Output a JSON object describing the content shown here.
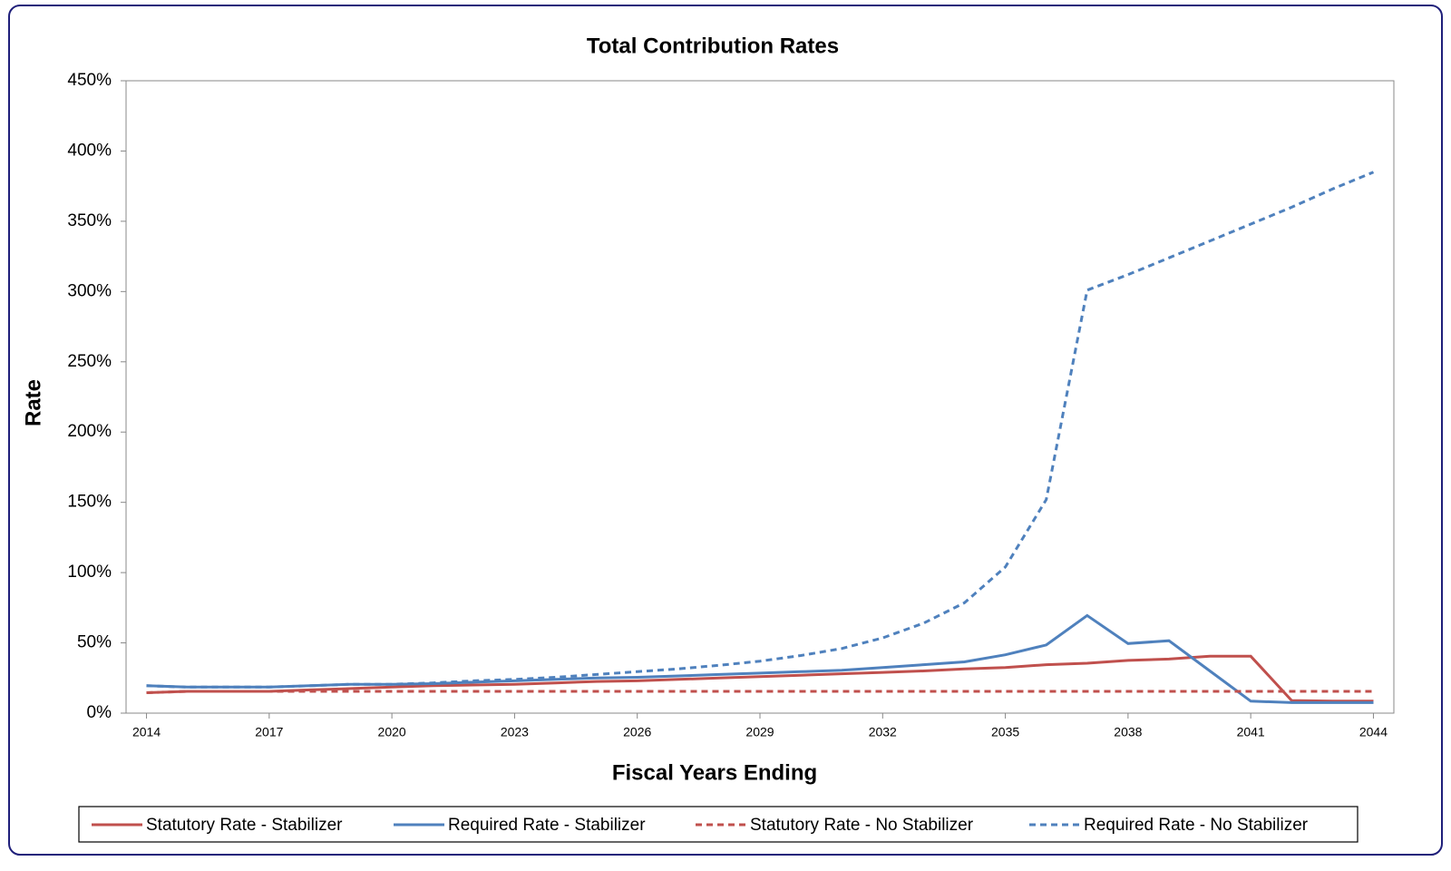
{
  "chart_data": {
    "type": "line",
    "title": "Total Contribution Rates",
    "x_label": "Fiscal Years Ending",
    "y_label": "Rate",
    "x": [
      2014,
      2015,
      2016,
      2017,
      2018,
      2019,
      2020,
      2021,
      2022,
      2023,
      2024,
      2025,
      2026,
      2027,
      2028,
      2029,
      2030,
      2031,
      2032,
      2033,
      2034,
      2035,
      2036,
      2037,
      2038,
      2039,
      2040,
      2041,
      2042,
      2043,
      2044
    ],
    "xlim": [
      2013.5,
      2044.5
    ],
    "xticks": [
      2014,
      2017,
      2020,
      2023,
      2026,
      2029,
      2032,
      2035,
      2038,
      2041,
      2044
    ],
    "ylim": [
      0,
      450
    ],
    "yticks": [
      {
        "value": 0,
        "label": "0%"
      },
      {
        "value": 50,
        "label": "50%"
      },
      {
        "value": 100,
        "label": "100%"
      },
      {
        "value": 150,
        "label": "150%"
      },
      {
        "value": 200,
        "label": "200%"
      },
      {
        "value": 250,
        "label": "250%"
      },
      {
        "value": 300,
        "label": "300%"
      },
      {
        "value": 350,
        "label": "350%"
      },
      {
        "value": 400,
        "label": "400%"
      },
      {
        "value": 450,
        "label": "450%"
      }
    ],
    "legend": "bottom",
    "series": [
      {
        "name": "Statutory Rate - Stabilizer",
        "color": "#c0504d",
        "line_style": "solid",
        "values": [
          14.5,
          15.5,
          15.5,
          15.5,
          16.5,
          17.5,
          18.5,
          19.5,
          20,
          20.5,
          21.5,
          22.5,
          23,
          24,
          25,
          26,
          27,
          28,
          29,
          30,
          31.5,
          32.5,
          34.5,
          35.5,
          37.5,
          38.5,
          40.5,
          40.5,
          9,
          8.5,
          8.5
        ]
      },
      {
        "name": "Required Rate - Stabilizer",
        "color": "#4f81bd",
        "line_style": "solid",
        "values": [
          19.5,
          18.5,
          18.5,
          18.5,
          19.5,
          20.5,
          20.5,
          21,
          22,
          23,
          24,
          25,
          25.5,
          26.5,
          27.5,
          28.5,
          29.5,
          30.5,
          32.5,
          34.5,
          36.5,
          41.5,
          48.5,
          69.5,
          49.5,
          51.5,
          30,
          8.5,
          7.5,
          7.5,
          7.5
        ]
      },
      {
        "name": "Statutory Rate - No Stabilizer",
        "color": "#c0504d",
        "line_style": "dashed",
        "values": [
          14.5,
          15.5,
          15.5,
          15.5,
          15.5,
          15.5,
          15.5,
          15.5,
          15.5,
          15.5,
          15.5,
          15.5,
          15.5,
          15.5,
          15.5,
          15.5,
          15.5,
          15.5,
          15.5,
          15.5,
          15.5,
          15.5,
          15.5,
          15.5,
          15.5,
          15.5,
          15.5,
          15.5,
          15.5,
          15.5,
          15.5
        ]
      },
      {
        "name": "Required Rate - No Stabilizer",
        "color": "#4f81bd",
        "line_style": "dashed",
        "values": [
          19.5,
          18.5,
          18.5,
          18.5,
          19.5,
          20.5,
          20.5,
          21.5,
          23,
          24,
          25.5,
          27.5,
          29.5,
          31.5,
          34,
          37,
          41,
          46,
          53.5,
          64,
          78.5,
          104,
          152,
          301,
          312,
          324,
          336,
          348,
          360,
          373,
          385
        ]
      }
    ]
  }
}
